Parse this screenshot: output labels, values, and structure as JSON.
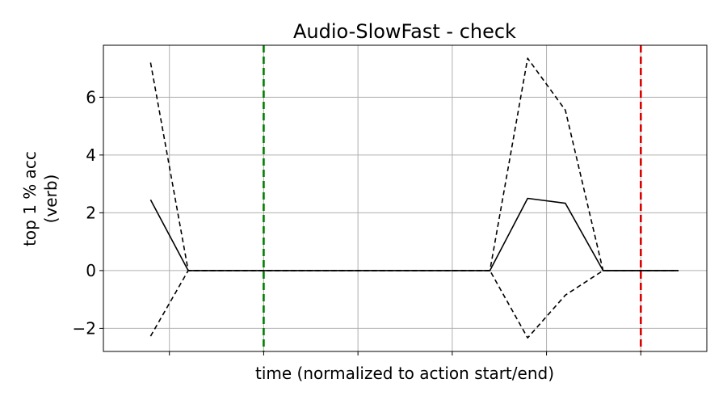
{
  "chart_data": {
    "type": "line",
    "title": "Audio-SlowFast - check",
    "xlabel": "time (normalized to action start/end)",
    "ylabel": [
      "top 1 % acc",
      "(verb)"
    ],
    "xlim": [
      -0.7,
      5.7
    ],
    "ylim": [
      -2.8,
      7.8
    ],
    "yticks": [
      -2,
      0,
      2,
      4,
      6
    ],
    "ytick_labels": [
      "−2",
      "0",
      "2",
      "4",
      "6"
    ],
    "xticks": [
      0,
      1,
      2,
      3,
      4,
      5
    ],
    "grid": true,
    "x": [
      -0.2,
      0.2,
      0.6,
      1.0,
      1.4,
      1.8,
      2.2,
      2.6,
      3.0,
      3.4,
      3.8,
      4.2,
      4.6,
      5.0,
      5.4
    ],
    "series": [
      {
        "role": "mean",
        "line_style": "solid",
        "color": "#000000",
        "values": [
          2.45,
          0,
          0,
          0,
          0,
          0,
          0,
          0,
          0,
          0,
          2.5,
          2.33,
          0,
          0,
          0
        ]
      },
      {
        "role": "upper",
        "line_style": "dashed",
        "color": "#000000",
        "values": [
          7.2,
          0,
          0,
          0,
          0,
          0,
          0,
          0,
          0,
          0,
          7.35,
          5.55,
          0,
          0,
          0
        ]
      },
      {
        "role": "lower",
        "line_style": "dashed",
        "color": "#000000",
        "values": [
          -2.27,
          0,
          0,
          0,
          0,
          0,
          0,
          0,
          0,
          0,
          -2.33,
          -0.85,
          0,
          0,
          0
        ]
      }
    ],
    "vlines": [
      {
        "name": "action-start",
        "x": 1.0,
        "color": "#008000",
        "line_style": "dashed"
      },
      {
        "name": "action-end",
        "x": 5.0,
        "color": "#dd0000",
        "line_style": "dashed"
      }
    ]
  }
}
